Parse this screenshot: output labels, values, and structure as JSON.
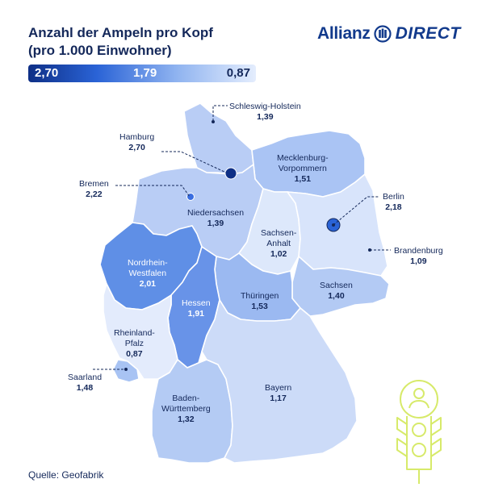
{
  "title": {
    "line1": "Anzahl der Ampeln pro Kopf",
    "line2": "(pro 1.000 Einwohner)"
  },
  "brand": {
    "name": "Allianz",
    "product": "DIRECT",
    "color": "#123a8c"
  },
  "legend_scale": {
    "max": "2,70",
    "mid": "1,79",
    "min": "0,87",
    "color_max": "#0e2f86",
    "color_min": "#e4edfd"
  },
  "states": [
    {
      "name": "Schleswig-Holstein",
      "value": "1,39"
    },
    {
      "name": "Hamburg",
      "value": "2,70"
    },
    {
      "name": "Mecklenburg-Vorpommern",
      "value": "1,51"
    },
    {
      "name": "Bremen",
      "value": "2,22"
    },
    {
      "name": "Berlin",
      "value": "2,18"
    },
    {
      "name": "Niedersachsen",
      "value": "1,39"
    },
    {
      "name": "Sachsen-Anhalt",
      "value": "1,02"
    },
    {
      "name": "Brandenburg",
      "value": "1,09"
    },
    {
      "name": "Nordrhein-Westfalen",
      "value": "2,01"
    },
    {
      "name": "Sachsen",
      "value": "1,40"
    },
    {
      "name": "Thüringen",
      "value": "1,53"
    },
    {
      "name": "Hessen",
      "value": "1,91"
    },
    {
      "name": "Rheinland-Pfalz",
      "value": "0,87"
    },
    {
      "name": "Saarland",
      "value": "1,48"
    },
    {
      "name": "Bayern",
      "value": "1,17"
    },
    {
      "name": "Baden-Württemberg",
      "value": "1,32"
    }
  ],
  "labels": {
    "sh": {
      "line1": "Schleswig-Holstein",
      "line2": ""
    },
    "hh": {
      "line1": "Hamburg",
      "line2": ""
    },
    "mv": {
      "line1": "Mecklenburg-",
      "line2": "Vorpommern"
    },
    "hb": {
      "line1": "Bremen",
      "line2": ""
    },
    "be": {
      "line1": "Berlin",
      "line2": ""
    },
    "ni": {
      "line1": "Niedersachsen",
      "line2": ""
    },
    "st": {
      "line1": "Sachsen-",
      "line2": "Anhalt"
    },
    "bb": {
      "line1": "Brandenburg",
      "line2": ""
    },
    "nw": {
      "line1": "Nordrhein-",
      "line2": "Westfalen"
    },
    "sn": {
      "line1": "Sachsen",
      "line2": ""
    },
    "th": {
      "line1": "Thüringen",
      "line2": ""
    },
    "he": {
      "line1": "Hessen",
      "line2": ""
    },
    "rp": {
      "line1": "Rheinland-",
      "line2": "Pfalz"
    },
    "sl": {
      "line1": "Saarland",
      "line2": ""
    },
    "by": {
      "line1": "Bayern",
      "line2": ""
    },
    "bw": {
      "line1": "Baden-",
      "line2": "Württemberg"
    }
  },
  "icon": "traffic-light-person-icon",
  "source": "Quelle: Geofabrik"
}
